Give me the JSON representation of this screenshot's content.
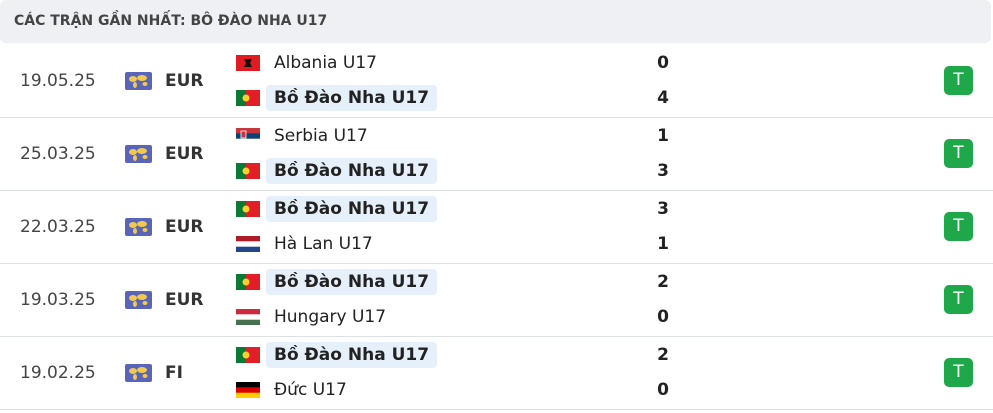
{
  "header": {
    "title": "CÁC TRẬN GẦN NHẤT: BÔ ĐÀO NHA U17"
  },
  "matches": [
    {
      "date": "19.05.25",
      "competition": "EUR",
      "teams": [
        {
          "name": "Albania U17",
          "score": 0
        },
        {
          "name": "Bồ Đào Nha U17",
          "score": 4
        }
      ],
      "result": "T"
    },
    {
      "date": "25.03.25",
      "competition": "EUR",
      "teams": [
        {
          "name": "Serbia U17",
          "score": 1
        },
        {
          "name": "Bồ Đào Nha U17",
          "score": 3
        }
      ],
      "result": "T"
    },
    {
      "date": "22.03.25",
      "competition": "EUR",
      "teams": [
        {
          "name": "Bồ Đào Nha U17",
          "score": 3
        },
        {
          "name": "Hà Lan U17",
          "score": 1
        }
      ],
      "result": "T"
    },
    {
      "date": "19.03.25",
      "competition": "EUR",
      "teams": [
        {
          "name": "Bồ Đào Nha U17",
          "score": 2
        },
        {
          "name": "Hungary U17",
          "score": 0
        }
      ],
      "result": "T"
    },
    {
      "date": "19.02.25",
      "competition": "FI",
      "teams": [
        {
          "name": "Bồ Đào Nha U17",
          "score": 2
        },
        {
          "name": "Đức U17",
          "score": 0
        }
      ],
      "result": "T"
    }
  ]
}
